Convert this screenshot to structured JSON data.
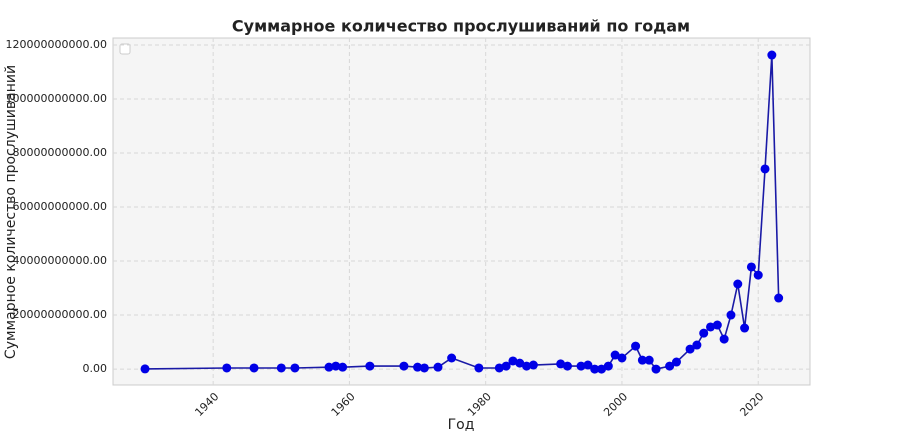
{
  "chart_data": {
    "type": "line",
    "title": "Суммарное количество прослушиваний по годам",
    "x_label": "Год",
    "y_label": "Суммарное количество прослушиваний",
    "x": [
      1930,
      1942,
      1946,
      1950,
      1952,
      1957,
      1958,
      1959,
      1963,
      1968,
      1970,
      1971,
      1973,
      1975,
      1979,
      1982,
      1983,
      1984,
      1985,
      1986,
      1987,
      1991,
      1992,
      1994,
      1995,
      1996,
      1997,
      1998,
      1999,
      2000,
      2002,
      2003,
      2004,
      2005,
      2007,
      2008,
      2010,
      2011,
      2012,
      2013,
      2014,
      2015,
      2016,
      2017,
      2018,
      2019,
      2020,
      2021,
      2022,
      2023
    ],
    "series": [
      {
        "name": "Суммарное количество прослушиваний",
        "color": "#0000e6",
        "line_color": "#1a1aa6",
        "values": [
          50000000,
          400000000,
          400000000,
          400000000,
          400000000,
          700000000,
          1100000000,
          700000000,
          1100000000,
          1100000000,
          700000000,
          400000000,
          700000000,
          4100000000,
          400000000,
          400000000,
          1100000000,
          3000000000,
          2200000000,
          1100000000,
          1500000000,
          1900000000,
          1100000000,
          1100000000,
          1500000000,
          0,
          0,
          1100000000,
          5200000000,
          4100000000,
          8500000000,
          3300000000,
          3300000000,
          0,
          1100000000,
          2600000000,
          7400000000,
          8900000000,
          13300000000,
          15600000000,
          16300000000,
          11100000000,
          20000000000,
          31500000000,
          15200000000,
          37800000000,
          34800000000,
          74100000000,
          116300000000,
          26300000000
        ]
      }
    ],
    "xlim": [
      1925.3,
      2027.6
    ],
    "ylim": [
      -5900000000,
      122600000000
    ],
    "xticks": [
      1940,
      1960,
      1980,
      2000,
      2020
    ],
    "yticks": [
      {
        "value": 0,
        "label": "0.00"
      },
      {
        "value": 20000000000,
        "label": "20000000000.00"
      },
      {
        "value": 40000000000,
        "label": "40000000000.00"
      },
      {
        "value": 60000000000,
        "label": "60000000000.00"
      },
      {
        "value": 80000000000,
        "label": "80000000000.00"
      },
      {
        "value": 100000000000,
        "label": "100000000000.00"
      },
      {
        "value": 120000000000,
        "label": "120000000000.00"
      }
    ],
    "grid": true
  }
}
